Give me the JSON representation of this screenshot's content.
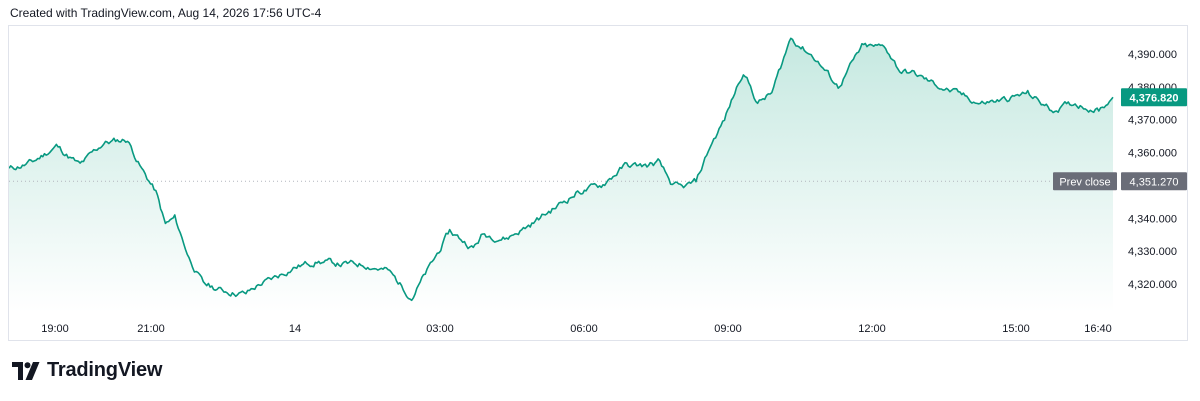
{
  "header": {
    "created_text": "Created with TradingView.com, Aug 14, 2026 17:56 UTC-4"
  },
  "brand": {
    "name": "TradingView",
    "logo_icon": "tradingview-logo-icon"
  },
  "colors": {
    "line": "#089981",
    "fill_top": "#bfe6dd",
    "fill_bottom": "#ffffff",
    "last_badge": "#089981",
    "prev_badge": "#6a6d78",
    "prev_line": "#b2b5be"
  },
  "chart_data": {
    "type": "area",
    "x_tick_labels": [
      "19:00",
      "21:00",
      "14",
      "03:00",
      "06:00",
      "09:00",
      "12:00",
      "15:00",
      "16:40"
    ],
    "y_tick_labels": [
      "4,320.000",
      "4,330.000",
      "4,340.000",
      "4,360.000",
      "4,370.000",
      "4,380.000",
      "4,390.000"
    ],
    "ylim": [
      4312,
      4398
    ],
    "last_value": 4376.82,
    "last_label": "4,376.820",
    "prev_close": 4351.27,
    "prev_close_label": "Prev close",
    "prev_close_value_label": "4,351.270",
    "x_hours": [
      17.5,
      18,
      18.5,
      19,
      19.5,
      20,
      20.3,
      20.6,
      20.8,
      21,
      21.3,
      21.6,
      22,
      22.5,
      22.8,
      23,
      23.5,
      24,
      24.5,
      25,
      25.5,
      26,
      26.5,
      26.8,
      27,
      27.3,
      27.5,
      28,
      28.5,
      29,
      29.5,
      30,
      30.5,
      31,
      31.2,
      31.5,
      31.7,
      32,
      32.3,
      32.6,
      33,
      33.3,
      33.6,
      34,
      34.5,
      35,
      35.5,
      36,
      36.3,
      36.6,
      37,
      37.5,
      38,
      38.5,
      39,
      39.5,
      40,
      40.5,
      40.8
    ],
    "values": [
      4355,
      4357,
      4362,
      4356,
      4363,
      4364,
      4355,
      4348,
      4338,
      4340,
      4328,
      4320,
      4318,
      4317,
      4320,
      4321,
      4325,
      4327,
      4326,
      4326,
      4324,
      4316,
      4328,
      4336,
      4334,
      4331,
      4335,
      4334,
      4338,
      4343,
      4348,
      4350,
      4356,
      4356,
      4357,
      4350,
      4349,
      4351,
      4362,
      4370,
      4385,
      4375,
      4378,
      4395,
      4389,
      4380,
      4392,
      4392,
      4385,
      4384,
      4381,
      4378,
      4375,
      4376,
      4378,
      4373,
      4375,
      4373,
      4376.82
    ]
  }
}
